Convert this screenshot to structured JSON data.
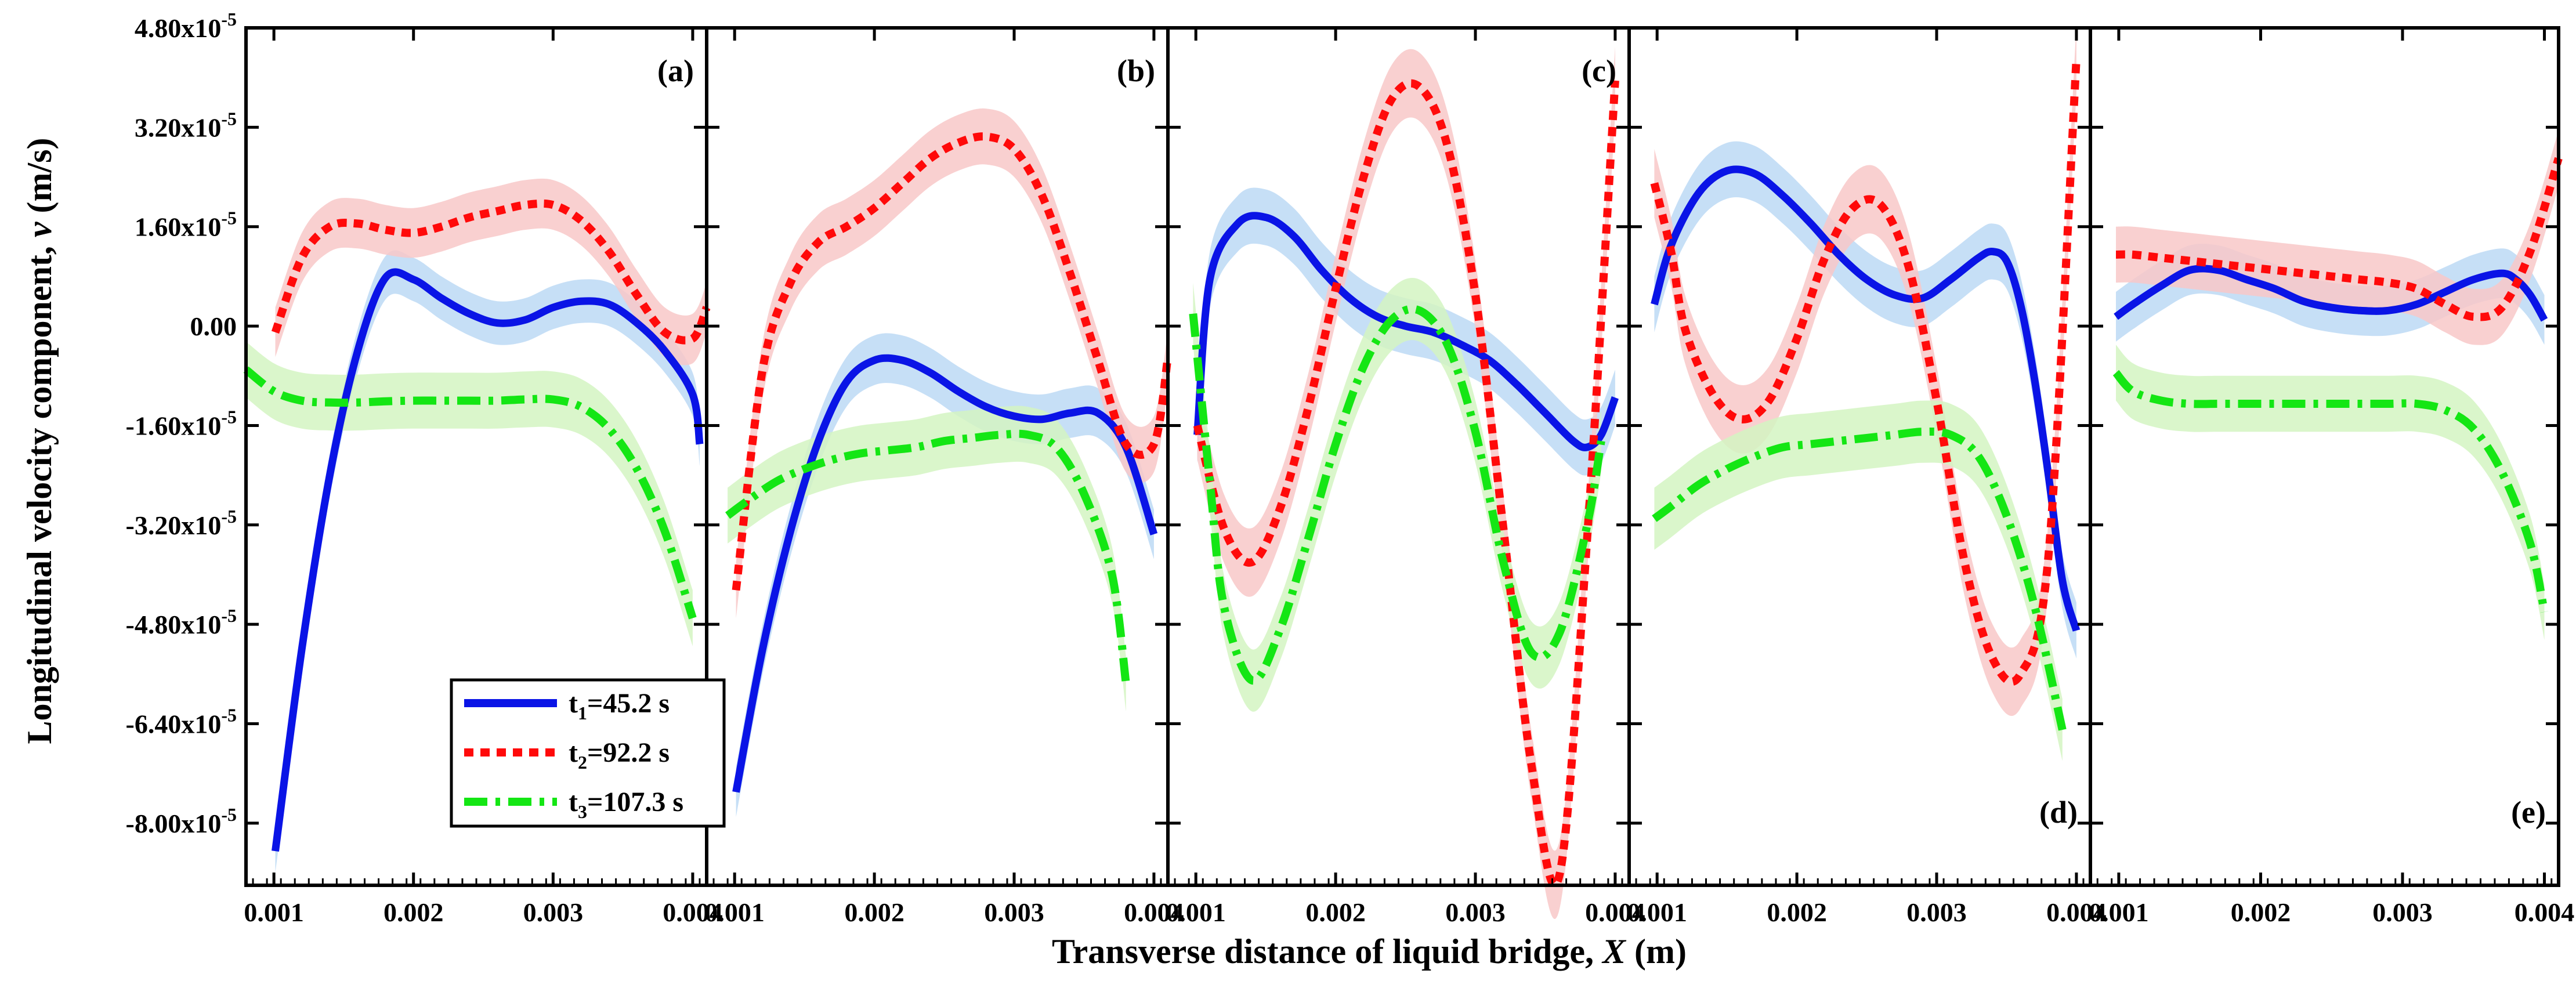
{
  "chart_data": {
    "type": "line",
    "xlabel_prefix": "Transverse distance of liquid bridge, ",
    "xlabel_var": "X",
    "xlabel_unit": " (m)",
    "ylabel_prefix": "Longitudinal velocity component, ",
    "ylabel_var": "v",
    "ylabel_unit": " (m/s)",
    "xlim": [
      0.0008,
      0.0041
    ],
    "ylim": [
      -9e-05,
      4.8e-05
    ],
    "x_ticks": [
      0.001,
      0.002,
      0.003,
      0.004
    ],
    "x_tick_labels": [
      "0.001",
      "0.002",
      "0.003",
      "0.004"
    ],
    "y_ticks": [
      4.8e-05,
      3.2e-05,
      1.6e-05,
      0.0,
      -1.6e-05,
      -3.2e-05,
      -4.8e-05,
      -6.4e-05,
      -8e-05
    ],
    "y_tick_labels": [
      {
        "mant": "4.80x10",
        "exp": "-5"
      },
      {
        "mant": "3.20x10",
        "exp": "-5"
      },
      {
        "mant": "1.60x10",
        "exp": "-5"
      },
      {
        "mant": "0.00",
        "exp": ""
      },
      {
        "mant": "-1.60x10",
        "exp": "-5"
      },
      {
        "mant": "-3.20x10",
        "exp": "-5"
      },
      {
        "mant": "-4.80x10",
        "exp": "-5"
      },
      {
        "mant": "-6.40x10",
        "exp": "-5"
      },
      {
        "mant": "-8.00x10",
        "exp": "-5"
      }
    ],
    "legend": [
      {
        "label": "t",
        "sub": "1",
        "rest": "=45.2 s",
        "color": "#0a14e6",
        "dash": "solid"
      },
      {
        "label": "t",
        "sub": "2",
        "rest": "=92.2 s",
        "color": "#ff0a0a",
        "dash": "dot"
      },
      {
        "label": "t",
        "sub": "3",
        "rest": "=107.3 s",
        "color": "#14e614",
        "dash": "dashdot"
      }
    ],
    "band_colors": [
      "#bcd9f5",
      "#f8c8c8",
      "#d3f5c2"
    ],
    "panels": [
      {
        "label": "(a)",
        "label_pos": "top-right",
        "series": [
          {
            "name": "t1=45.2 s",
            "band": 3.5e-06,
            "x": [
              0.00101,
              0.0012,
              0.0014,
              0.0016,
              0.0018,
              0.002,
              0.0022,
              0.0024,
              0.0026,
              0.0028,
              0.003,
              0.0032,
              0.0034,
              0.0036,
              0.0038,
              0.004,
              0.00405
            ],
            "y": [
              -8.45e-05,
              -5.2e-05,
              -2.4e-05,
              -4e-06,
              7.8e-06,
              7.5e-06,
              4.5e-06,
              2e-06,
              5e-07,
              1e-06,
              3e-06,
              4e-06,
              3.5e-06,
              5e-07,
              -4e-06,
              -1.1e-05,
              -1.9e-05
            ]
          },
          {
            "name": "t2=92.2 s",
            "band": 4e-06,
            "x": [
              0.00101,
              0.0012,
              0.0014,
              0.0016,
              0.0018,
              0.002,
              0.0022,
              0.0024,
              0.0026,
              0.0028,
              0.003,
              0.0032,
              0.0034,
              0.0036,
              0.0038,
              0.004,
              0.0041
            ],
            "y": [
              -1e-06,
              1.1e-05,
              1.6e-05,
              1.65e-05,
              1.55e-05,
              1.5e-05,
              1.6e-05,
              1.75e-05,
              1.85e-05,
              1.95e-05,
              1.95e-05,
              1.7e-05,
              1.2e-05,
              5e-06,
              -1e-06,
              -2e-06,
              3e-06
            ]
          },
          {
            "name": "t3=107.3 s",
            "band": 4.5e-06,
            "x": [
              0.0008,
              0.001,
              0.0012,
              0.0014,
              0.0016,
              0.0018,
              0.002,
              0.0022,
              0.0024,
              0.0026,
              0.0028,
              0.003,
              0.0032,
              0.0034,
              0.0036,
              0.0038,
              0.004
            ],
            "y": [
              -7e-06,
              -1.05e-05,
              -1.2e-05,
              -1.23e-05,
              -1.23e-05,
              -1.21e-05,
              -1.2e-05,
              -1.2e-05,
              -1.2e-05,
              -1.2e-05,
              -1.18e-05,
              -1.18e-05,
              -1.3e-05,
              -1.65e-05,
              -2.3e-05,
              -3.3e-05,
              -4.7e-05
            ]
          }
        ]
      },
      {
        "label": "(b)",
        "label_pos": "top-right",
        "series": [
          {
            "name": "t1=45.2 s",
            "band": 4e-06,
            "x": [
              0.00101,
              0.0012,
              0.0014,
              0.0016,
              0.0018,
              0.002,
              0.0022,
              0.0024,
              0.0026,
              0.0028,
              0.003,
              0.0032,
              0.0034,
              0.0036,
              0.0038,
              0.004
            ],
            "y": [
              -7.5e-05,
              -5.2e-05,
              -3.3e-05,
              -1.85e-05,
              -9e-06,
              -5.5e-06,
              -5.5e-06,
              -7.5e-06,
              -1.05e-05,
              -1.3e-05,
              -1.45e-05,
              -1.5e-05,
              -1.4e-05,
              -1.4e-05,
              -1.95e-05,
              -3.35e-05
            ]
          },
          {
            "name": "t2=92.2 s",
            "band": 4.5e-06,
            "x": [
              0.00101,
              0.0012,
              0.0014,
              0.0016,
              0.0018,
              0.002,
              0.0022,
              0.0024,
              0.0026,
              0.0028,
              0.003,
              0.0032,
              0.0034,
              0.0036,
              0.0038,
              0.004,
              0.0041
            ],
            "y": [
              -4.25e-05,
              -7e-06,
              7e-06,
              1.35e-05,
              1.6e-05,
              1.9e-05,
              2.3e-05,
              2.7e-05,
              2.95e-05,
              3.05e-05,
              2.85e-05,
              2.1e-05,
              8.5e-06,
              -5.5e-06,
              -1.9e-05,
              -1.9e-05,
              -5e-06
            ]
          },
          {
            "name": "t3=107.3 s",
            "band": 4.5e-06,
            "x": [
              0.00095,
              0.0011,
              0.0013,
              0.0015,
              0.0017,
              0.0019,
              0.0021,
              0.0023,
              0.0025,
              0.0027,
              0.0029,
              0.0031,
              0.0033,
              0.0035,
              0.0037,
              0.0038
            ],
            "y": [
              -3.05e-05,
              -2.8e-05,
              -2.5e-05,
              -2.3e-05,
              -2.15e-05,
              -2.05e-05,
              -2e-05,
              -1.95e-05,
              -1.85e-05,
              -1.8e-05,
              -1.75e-05,
              -1.75e-05,
              -1.95e-05,
              -2.7e-05,
              -4e-05,
              -5.75e-05
            ]
          }
        ]
      },
      {
        "label": "(c)",
        "label_pos": "top-right",
        "series": [
          {
            "name": "t1=45.2 s",
            "band": 4.5e-06,
            "x": [
              0.00101,
              0.0011,
              0.0013,
              0.0015,
              0.0017,
              0.0019,
              0.0021,
              0.0023,
              0.0025,
              0.0027,
              0.0029,
              0.0031,
              0.0033,
              0.0035,
              0.0037,
              0.0038,
              0.0039,
              0.004
            ],
            "y": [
              -1.75e-05,
              7.5e-06,
              1.65e-05,
              1.75e-05,
              1.45e-05,
              9e-06,
              4.5e-06,
              1.5e-06,
              0.0,
              -1e-06,
              -3e-06,
              -5.5e-06,
              -9.5e-06,
              -1.4e-05,
              -1.85e-05,
              -1.95e-05,
              -1.75e-05,
              -1.15e-05
            ]
          },
          {
            "name": "t2=92.2 s",
            "band": 5.5e-06,
            "x": [
              0.00101,
              0.0012,
              0.0014,
              0.0016,
              0.0018,
              0.002,
              0.0022,
              0.0024,
              0.0026,
              0.0028,
              0.003,
              0.0032,
              0.0034,
              0.0036,
              0.0038,
              0.004
            ],
            "y": [
              -1.6e-05,
              -3.25e-05,
              -3.8e-05,
              -2.95e-05,
              -1.35e-05,
              6e-06,
              2.4e-05,
              3.65e-05,
              3.85e-05,
              2.9e-05,
              5e-06,
              -3.25e-05,
              -7.05e-05,
              -8.85e-05,
              -3.4e-05,
              3.95e-05
            ]
          },
          {
            "name": "t3=107.3 s",
            "band": 5e-06,
            "x": [
              0.00098,
              0.0011,
              0.0012,
              0.0014,
              0.0016,
              0.0018,
              0.002,
              0.0022,
              0.0024,
              0.0026,
              0.0028,
              0.003,
              0.0032,
              0.0034,
              0.0036,
              0.0038,
              0.0039
            ],
            "y": [
              2e-06,
              -2.5e-05,
              -4.5e-05,
              -5.7e-05,
              -4.9e-05,
              -3.45e-05,
              -1.9e-05,
              -6.5e-06,
              1e-06,
              2.5e-06,
              -3e-06,
              -1.7e-05,
              -3.8e-05,
              -5.25e-05,
              -4.95e-05,
              -3.2e-05,
              -1.85e-05
            ]
          }
        ]
      },
      {
        "label": "(d)",
        "label_pos": "bottom-right",
        "series": [
          {
            "name": "t1=45.2 s",
            "band": 4.5e-06,
            "x": [
              0.00098,
              0.0011,
              0.0013,
              0.0015,
              0.0017,
              0.0019,
              0.0021,
              0.0023,
              0.0025,
              0.0027,
              0.0029,
              0.0031,
              0.0033,
              0.0034,
              0.0035,
              0.0036,
              0.0037,
              0.0038,
              0.0039,
              0.004
            ],
            "y": [
              3.5e-06,
              1.3e-05,
              2.15e-05,
              2.5e-05,
              2.45e-05,
              2.1e-05,
              1.65e-05,
              1.15e-05,
              7.5e-06,
              5e-06,
              4.5e-06,
              7.5e-06,
              1.1e-05,
              1.2e-05,
              1.05e-05,
              3.5e-06,
              -8.5e-06,
              -2.4e-05,
              -4.1e-05,
              -4.9e-05
            ]
          },
          {
            "name": "t2=92.2 s",
            "band": 5.5e-06,
            "x": [
              0.00098,
              0.0011,
              0.0012,
              0.0014,
              0.0016,
              0.0018,
              0.002,
              0.0022,
              0.0024,
              0.0026,
              0.0028,
              0.003,
              0.0032,
              0.0034,
              0.0036,
              0.0038,
              0.004
            ],
            "y": [
              2.3e-05,
              1.2e-05,
              -5e-07,
              -1.1e-05,
              -1.5e-05,
              -1.2e-05,
              -2e-06,
              1.1e-05,
              1.9e-05,
              1.95e-05,
              9.5e-06,
              -1.2e-05,
              -3.8e-05,
              -5.35e-05,
              -5.6e-05,
              -3.7e-05,
              4.3e-05
            ]
          },
          {
            "name": "t3=107.3 s",
            "band": 5e-06,
            "x": [
              0.00098,
              0.0011,
              0.0013,
              0.0015,
              0.0017,
              0.0019,
              0.0021,
              0.0023,
              0.0025,
              0.0027,
              0.0029,
              0.0031,
              0.0033,
              0.0035,
              0.0037,
              0.0039
            ],
            "y": [
              -3.1e-05,
              -2.9e-05,
              -2.55e-05,
              -2.3e-05,
              -2.1e-05,
              -1.95e-05,
              -1.9e-05,
              -1.85e-05,
              -1.8e-05,
              -1.75e-05,
              -1.7e-05,
              -1.75e-05,
              -2.1e-05,
              -3.05e-05,
              -4.5e-05,
              -6.5e-05
            ]
          }
        ]
      },
      {
        "label": "(e)",
        "label_pos": "bottom-right",
        "series": [
          {
            "name": "t1=45.2 s",
            "band": 4e-06,
            "x": [
              0.00098,
              0.0011,
              0.0013,
              0.0015,
              0.0017,
              0.0019,
              0.0021,
              0.0023,
              0.0025,
              0.0027,
              0.0029,
              0.0031,
              0.0033,
              0.0035,
              0.0037,
              0.0038,
              0.0039,
              0.004
            ],
            "y": [
              1.5e-06,
              3.5e-06,
              6.5e-06,
              9e-06,
              9e-06,
              7.5e-06,
              6e-06,
              4e-06,
              3e-06,
              2.5e-06,
              2.5e-06,
              3.5e-06,
              5.5e-06,
              7.5e-06,
              8.5e-06,
              7.5e-06,
              5e-06,
              1e-06
            ]
          },
          {
            "name": "t2=92.2 s",
            "band": 4.5e-06,
            "x": [
              0.00098,
              0.0011,
              0.0013,
              0.0015,
              0.0017,
              0.0019,
              0.0021,
              0.0023,
              0.0025,
              0.0027,
              0.0029,
              0.0031,
              0.0033,
              0.0035,
              0.0037,
              0.0039,
              0.0041
            ],
            "y": [
              1.15e-05,
              1.15e-05,
              1.1e-05,
              1.05e-05,
              1e-05,
              9.5e-06,
              9e-06,
              8.5e-06,
              8e-06,
              7.5e-06,
              7e-06,
              6e-06,
              3.5e-06,
              1.5e-06,
              3e-06,
              1.2e-05,
              2.7e-05
            ]
          },
          {
            "name": "t3=107.3 s",
            "band": 4.5e-06,
            "x": [
              0.00098,
              0.0011,
              0.0013,
              0.0015,
              0.0017,
              0.0019,
              0.0021,
              0.0023,
              0.0025,
              0.0027,
              0.0029,
              0.0031,
              0.0033,
              0.0035,
              0.0037,
              0.0039,
              0.004
            ],
            "y": [
              -7.5e-06,
              -1.05e-05,
              -1.2e-05,
              -1.25e-05,
              -1.25e-05,
              -1.25e-05,
              -1.25e-05,
              -1.25e-05,
              -1.25e-05,
              -1.25e-05,
              -1.25e-05,
              -1.25e-05,
              -1.35e-05,
              -1.65e-05,
              -2.35e-05,
              -3.5e-05,
              -4.6e-05
            ]
          }
        ]
      }
    ]
  }
}
